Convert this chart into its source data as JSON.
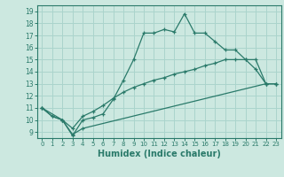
{
  "title": "",
  "xlabel": "Humidex (Indice chaleur)",
  "ylabel": "",
  "background_color": "#cce8e0",
  "grid_color": "#aad4cc",
  "line_color": "#2a7a6a",
  "xlim": [
    -0.5,
    23.5
  ],
  "ylim": [
    8.5,
    19.5
  ],
  "xticks": [
    0,
    1,
    2,
    3,
    4,
    5,
    6,
    7,
    8,
    9,
    10,
    11,
    12,
    13,
    14,
    15,
    16,
    17,
    18,
    19,
    20,
    21,
    22,
    23
  ],
  "yticks": [
    9,
    10,
    11,
    12,
    13,
    14,
    15,
    16,
    17,
    18,
    19
  ],
  "series1": [
    [
      0,
      11.0
    ],
    [
      1,
      10.3
    ],
    [
      2,
      10.0
    ],
    [
      3,
      8.7
    ],
    [
      4,
      10.0
    ],
    [
      5,
      10.2
    ],
    [
      6,
      10.5
    ],
    [
      7,
      11.7
    ],
    [
      8,
      13.3
    ],
    [
      9,
      15.0
    ],
    [
      10,
      17.2
    ],
    [
      11,
      17.2
    ],
    [
      12,
      17.5
    ],
    [
      13,
      17.3
    ],
    [
      14,
      18.8
    ],
    [
      15,
      17.2
    ],
    [
      16,
      17.2
    ],
    [
      17,
      16.5
    ],
    [
      18,
      15.8
    ],
    [
      19,
      15.8
    ],
    [
      20,
      15.0
    ],
    [
      21,
      14.2
    ],
    [
      22,
      13.0
    ],
    [
      23,
      13.0
    ]
  ],
  "series2": [
    [
      0,
      11.0
    ],
    [
      1,
      10.3
    ],
    [
      2,
      10.0
    ],
    [
      3,
      9.3
    ],
    [
      4,
      10.3
    ],
    [
      5,
      10.7
    ],
    [
      6,
      11.2
    ],
    [
      7,
      11.8
    ],
    [
      8,
      12.3
    ],
    [
      9,
      12.7
    ],
    [
      10,
      13.0
    ],
    [
      11,
      13.3
    ],
    [
      12,
      13.5
    ],
    [
      13,
      13.8
    ],
    [
      14,
      14.0
    ],
    [
      15,
      14.2
    ],
    [
      16,
      14.5
    ],
    [
      17,
      14.7
    ],
    [
      18,
      15.0
    ],
    [
      19,
      15.0
    ],
    [
      20,
      15.0
    ],
    [
      21,
      15.0
    ],
    [
      22,
      13.0
    ],
    [
      23,
      13.0
    ]
  ],
  "series3": [
    [
      0,
      11.0
    ],
    [
      2,
      10.0
    ],
    [
      3,
      8.8
    ],
    [
      4,
      9.3
    ],
    [
      22,
      13.0
    ],
    [
      23,
      13.0
    ]
  ]
}
